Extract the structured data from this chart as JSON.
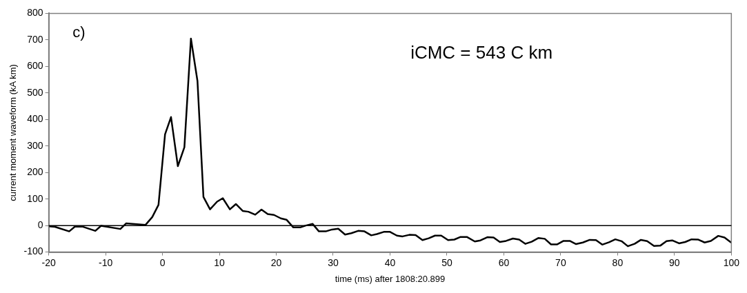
{
  "chart_data": {
    "type": "line",
    "xlabel": "time (ms) after 1808:20.899",
    "ylabel": "current moment waveform (kA km)",
    "annotations": [
      "c)",
      "iCMC = 543 C km"
    ],
    "xlim": [
      -20,
      100
    ],
    "xticks": [
      -20,
      -10,
      0,
      10,
      20,
      30,
      40,
      50,
      60,
      70,
      80,
      90,
      100
    ],
    "ylim": [
      -100,
      800
    ],
    "yticks": [
      -100,
      0,
      100,
      200,
      300,
      400,
      500,
      600,
      700,
      800
    ],
    "grid": false,
    "legend": false,
    "marker": "none",
    "line_style": "solid",
    "ref_lines": [
      {
        "axis": "y",
        "value": 0,
        "color": "#000000"
      }
    ],
    "series": [
      {
        "color": "#000000",
        "x": [
          -20,
          -18.9,
          -16.4,
          -15.4,
          -14.1,
          -11.8,
          -10.8,
          -7.4,
          -6.4,
          -3.0,
          -1.8,
          -0.7,
          0.45,
          1.5,
          2.7,
          3.85,
          5.0,
          6.15,
          7.2,
          8.36,
          9.6,
          10.6,
          11.85,
          12.9,
          14.1,
          15.1,
          16.3,
          17.4,
          18.5,
          19.6,
          20.8,
          21.8,
          23.0,
          24.2,
          25.2,
          26.4,
          27.5,
          28.7,
          29.8,
          30.9,
          32.1,
          33.2,
          34.4,
          35.5,
          36.7,
          37.7,
          38.9,
          40.0,
          41.2,
          42.2,
          43.4,
          44.5,
          45.7,
          46.8,
          47.9,
          49.0,
          50.2,
          51.3,
          52.4,
          53.5,
          54.9,
          55.9,
          57.1,
          58.2,
          59.3,
          60.4,
          61.6,
          62.7,
          63.8,
          64.9,
          66.1,
          67.2,
          68.3,
          69.4,
          70.5,
          71.6,
          72.7,
          73.9,
          75.1,
          76.2,
          77.3,
          78.5,
          79.6,
          80.7,
          81.8,
          83.0,
          84.1,
          85.2,
          86.4,
          87.5,
          88.6,
          89.6,
          90.8,
          91.9,
          93.0,
          94.2,
          95.3,
          96.4,
          97.7,
          98.8,
          100
        ],
        "values": [
          -3,
          -5,
          -22,
          -4,
          -4,
          -20,
          -1,
          -13,
          8,
          2,
          32,
          78,
          344,
          409,
          224,
          295,
          705,
          545,
          108,
          61,
          90,
          103,
          61,
          81,
          55,
          52,
          41,
          60,
          43,
          40,
          27,
          22,
          -7,
          -7,
          0,
          6,
          -22,
          -22,
          -15,
          -12,
          -34,
          -29,
          -20,
          -22,
          -37,
          -32,
          -24,
          -24,
          -38,
          -41,
          -35,
          -36,
          -55,
          -48,
          -38,
          -38,
          -55,
          -53,
          -43,
          -43,
          -60,
          -56,
          -44,
          -45,
          -62,
          -58,
          -49,
          -53,
          -69,
          -61,
          -47,
          -50,
          -71,
          -71,
          -58,
          -58,
          -70,
          -64,
          -54,
          -55,
          -72,
          -63,
          -52,
          -59,
          -78,
          -69,
          -54,
          -59,
          -77,
          -76,
          -59,
          -56,
          -67,
          -62,
          -52,
          -53,
          -64,
          -58,
          -39,
          -45,
          -65
        ]
      }
    ]
  }
}
